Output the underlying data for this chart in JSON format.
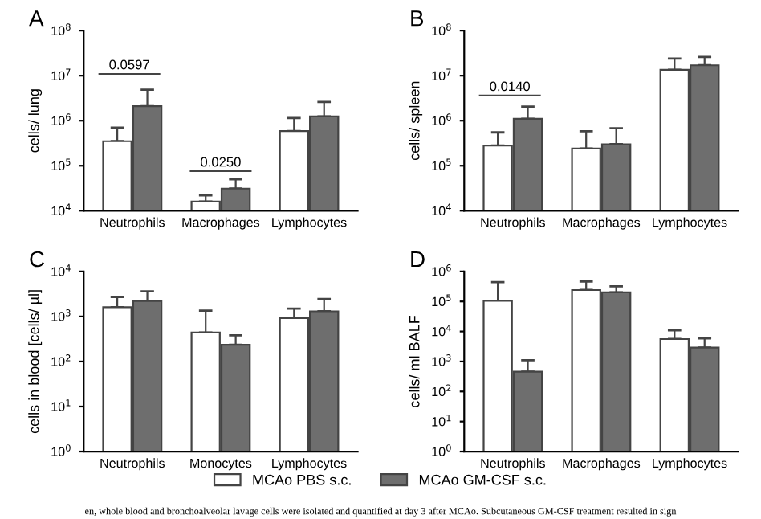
{
  "chart_data": [
    {
      "type": "bar",
      "title": "A",
      "ylabel": "cells/ lung",
      "categories": [
        "Neutrophils",
        "Macrophages",
        "Lymphocytes"
      ],
      "log": true,
      "ylim": [
        10000,
        100000000
      ],
      "yticks": [
        {
          "value": 10000,
          "label": "10$^{4}$"
        },
        {
          "value": 100000,
          "label": "10$^{5}$"
        },
        {
          "value": 1000000,
          "label": "10$^{6}$"
        },
        {
          "value": 10000000,
          "label": "10$^{7}$"
        },
        {
          "value": 100000000,
          "label": "10$^{8}$"
        }
      ],
      "series": [
        {
          "color": "#ffffff",
          "values": [
            350000,
            16000,
            590000
          ],
          "errors": [
            [
              350000,
              700000
            ],
            [
              16000,
              22000
            ],
            [
              590000,
              1150000
            ]
          ]
        },
        {
          "color": "#6e6e6e",
          "values": [
            2100000,
            31000,
            1250000
          ],
          "errors": [
            [
              2100000,
              4900000
            ],
            [
              31000,
              50000
            ],
            [
              1250000,
              2600000
            ]
          ]
        }
      ],
      "annotations": [
        "0.0597",
        "0.0250"
      ],
      "grid": false,
      "legend": false
    },
    {
      "type": "bar",
      "title": "B",
      "ylabel": "cells/ spleen",
      "categories": [
        "Neutrophils",
        "Macrophages",
        "Lymphocytes"
      ],
      "log": true,
      "ylim": [
        10000,
        100000000
      ],
      "yticks": [
        {
          "value": 10000,
          "label": "10$^{4}$"
        },
        {
          "value": 100000,
          "label": "10$^{5}$"
        },
        {
          "value": 1000000,
          "label": "10$^{6}$"
        },
        {
          "value": 10000000,
          "label": "10$^{7}$"
        },
        {
          "value": 100000000,
          "label": "10$^{8}$"
        }
      ],
      "series": [
        {
          "color": "#ffffff",
          "values": [
            280000,
            240000,
            13500000
          ],
          "errors": [
            [
              280000,
              550000
            ],
            [
              240000,
              580000
            ],
            [
              13500000,
              24000000
            ]
          ]
        },
        {
          "color": "#6e6e6e",
          "values": [
            1100000,
            300000,
            17000000
          ],
          "errors": [
            [
              1100000,
              2050000
            ],
            [
              300000,
              680000
            ],
            [
              17000000,
              26000000
            ]
          ]
        }
      ],
      "annotations": [
        "0.0140"
      ],
      "grid": false,
      "legend": false
    },
    {
      "type": "bar",
      "title": "C",
      "ylabel": "cells in blood [cells/ µl]",
      "categories": [
        "Neutrophils",
        "Monocytes",
        "Lymphocytes"
      ],
      "log": true,
      "ylim": [
        1,
        10000
      ],
      "yticks": [
        {
          "value": 1,
          "label": "10$^{0}$"
        },
        {
          "value": 10,
          "label": "10$^{1}$"
        },
        {
          "value": 100,
          "label": "10$^{2}$"
        },
        {
          "value": 1000,
          "label": "10$^{3}$"
        },
        {
          "value": 10000,
          "label": "10$^{4}$"
        }
      ],
      "series": [
        {
          "name": "MCAo PBS s.c.",
          "color": "#ffffff",
          "values": [
            1600,
            440,
            920
          ],
          "errors": [
            [
              1600,
              2700
            ],
            [
              440,
              1350
            ],
            [
              920,
              1500
            ]
          ]
        },
        {
          "name": "MCAo GM-CSF s.c.",
          "color": "#6e6e6e",
          "values": [
            2200,
            235,
            1300
          ],
          "errors": [
            [
              2200,
              3600
            ],
            [
              235,
              380
            ],
            [
              1300,
              2450
            ]
          ]
        }
      ],
      "grid": false,
      "legend": "bottom"
    },
    {
      "type": "bar",
      "title": "D",
      "ylabel": "cells/ ml BALF",
      "categories": [
        "Neutrophils",
        "Macrophages",
        "Lymphocytes"
      ],
      "log": true,
      "ylim": [
        1,
        1000000
      ],
      "yticks": [
        {
          "value": 1,
          "label": "10$^{0}$"
        },
        {
          "value": 10,
          "label": "10$^{1}$"
        },
        {
          "value": 100,
          "label": "10$^{2}$"
        },
        {
          "value": 1000,
          "label": "10$^{3}$"
        },
        {
          "value": 10000,
          "label": "10$^{4}$"
        },
        {
          "value": 100000,
          "label": "10$^{5}$"
        },
        {
          "value": 1000000,
          "label": "10$^{6}$"
        }
      ],
      "series": [
        {
          "color": "#ffffff",
          "values": [
            105000,
            240000,
            5600
          ],
          "errors": [
            [
              105000,
              440000
            ],
            [
              240000,
              460000
            ],
            [
              5600,
              11000
            ]
          ]
        },
        {
          "color": "#6e6e6e",
          "values": [
            460,
            200000,
            2900
          ],
          "errors": [
            [
              460,
              1100
            ],
            [
              200000,
              320000
            ],
            [
              2900,
              5900
            ]
          ]
        }
      ],
      "grid": false,
      "legend": false,
      "annotations": [
        "en, whole blood and bronchoalveolar lavage cells were isolated and quantified at day 3 after MCAo. Subcutaneous GM-CSF treatment resulted in sign"
      ]
    }
  ]
}
